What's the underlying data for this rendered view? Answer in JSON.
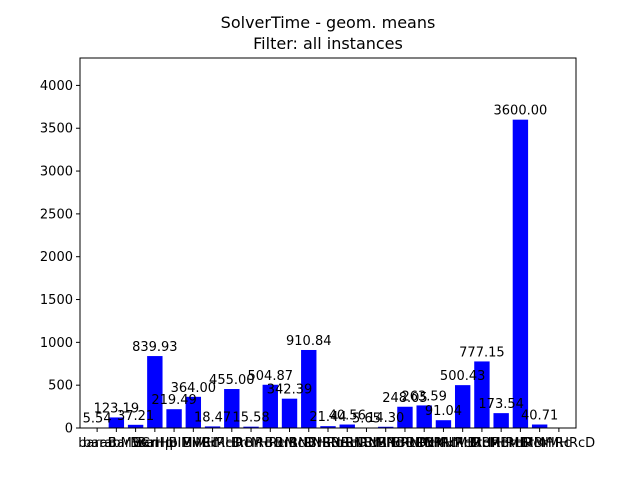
{
  "chart_data": {
    "type": "bar",
    "title": "SolverTime - geom. means",
    "subtitle": "Filter: all instances",
    "xlabel": "",
    "ylabel": "",
    "ylim": [
      0,
      4320
    ],
    "yticks": [
      0,
      500,
      1000,
      1500,
      2000,
      2500,
      3000,
      3500,
      4000
    ],
    "bar_color": "#0000ff",
    "categories": [
      "barab",
      "barabMVC",
      "BarBrcnl",
      "BarHpl",
      "BarHplMVC",
      "BiMHRc",
      "BiMHRcD",
      "BiMHRcM",
      "BrHRc",
      "BrHRcM",
      "BrHRcD",
      "BrRNBHRc",
      "BrRNBHRcD",
      "BrRNBHRcM",
      "BrRNBlHRc",
      "BrRNBlHRcD",
      "BrRNBlHRcM",
      "BRNMHRc",
      "BRNMHRcD",
      "BRNMHRcM",
      "MBrHRc",
      "MBrHRcD",
      "MBrHRcM",
      "MBrMHRc",
      "MBrMHRcD"
    ],
    "values": [
      5.54,
      123.19,
      37.21,
      839.93,
      219.49,
      364.0,
      18.47,
      455.0,
      15.58,
      504.87,
      342.39,
      910.84,
      21.44,
      40.56,
      5.65,
      14.3,
      248.05,
      263.59,
      91.04,
      500.43,
      777.15,
      173.54,
      3600.0,
      40.71,
      0
    ],
    "data_labels": [
      "5.54",
      "123.19",
      "37.21",
      "839.93",
      "219.49",
      "364.00",
      "18.47",
      "455.00",
      "15.58",
      "504.87",
      "342.39",
      "910.84",
      "21.44",
      "40.56",
      "5.65",
      "14.30",
      "248.05",
      "263.59",
      "91.04",
      "500.43",
      "777.15",
      "173.54",
      "3600.00",
      "40.71",
      ""
    ]
  }
}
